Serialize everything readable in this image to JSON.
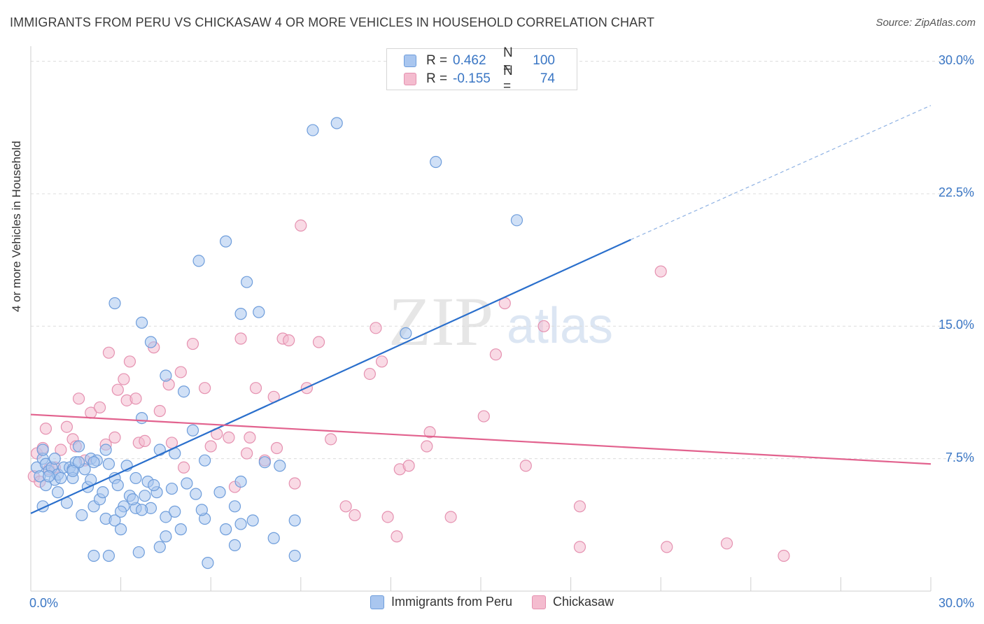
{
  "header": {
    "title": "IMMIGRANTS FROM PERU VS CHICKASAW 4 OR MORE VEHICLES IN HOUSEHOLD CORRELATION CHART",
    "source": "Source: ZipAtlas.com"
  },
  "watermark": {
    "zip": "ZIP",
    "atlas": "atlas"
  },
  "legend_top": {
    "rows": [
      {
        "r_label": "R =",
        "r_value": "0.462",
        "n_label": "N =",
        "n_value": "100"
      },
      {
        "r_label": "R =",
        "r_value": "-0.155",
        "n_label": "N =",
        "n_value": "74"
      }
    ]
  },
  "legend_bottom": [
    {
      "label": "Immigrants from Peru"
    },
    {
      "label": "Chickasaw"
    }
  ],
  "colors": {
    "blue_fill": "#a9c6ef",
    "blue_stroke": "#6e9ddb",
    "blue_line": "#2a6fcc",
    "pink_fill": "#f4bccf",
    "pink_stroke": "#e591b0",
    "pink_line": "#e2628e",
    "axis_text": "#3a76c4",
    "grid": "#dcdcdc"
  },
  "chart_data": {
    "type": "scatter",
    "title": "IMMIGRANTS FROM PERU VS CHICKASAW 4 OR MORE VEHICLES IN HOUSEHOLD CORRELATION CHART",
    "xlabel": "",
    "ylabel": "4 or more Vehicles in Household",
    "xlim": [
      0,
      30
    ],
    "ylim": [
      0,
      30.5
    ],
    "x_tick_labels": [
      "0.0%",
      "30.0%"
    ],
    "y_ticks": [
      7.5,
      15.0,
      22.5,
      30.0
    ],
    "y_tick_labels": [
      "7.5%",
      "15.0%",
      "22.5%",
      "30.0%"
    ],
    "grid": true,
    "legend_position": "bottom",
    "series": [
      {
        "name": "Immigrants from Peru",
        "color": "#a9c6ef",
        "trend": {
          "x": [
            0.0,
            20.0
          ],
          "y": [
            4.4,
            19.9
          ],
          "dashed_extension_to": [
            30.0,
            27.5
          ]
        },
        "points": [
          [
            0.2,
            7.0
          ],
          [
            0.3,
            6.5
          ],
          [
            0.4,
            7.5
          ],
          [
            0.5,
            7.2
          ],
          [
            0.6,
            6.8
          ],
          [
            0.7,
            7.0
          ],
          [
            0.8,
            6.3
          ],
          [
            0.9,
            6.6
          ],
          [
            1.0,
            6.4
          ],
          [
            1.1,
            7.0
          ],
          [
            0.5,
            6.0
          ],
          [
            0.4,
            8.0
          ],
          [
            0.8,
            7.5
          ],
          [
            1.3,
            7.0
          ],
          [
            1.4,
            6.9
          ],
          [
            1.5,
            7.3
          ],
          [
            1.6,
            8.2
          ],
          [
            1.8,
            6.9
          ],
          [
            2.0,
            7.5
          ],
          [
            2.2,
            7.4
          ],
          [
            2.5,
            8.0
          ],
          [
            2.6,
            7.2
          ],
          [
            1.2,
            5.0
          ],
          [
            0.9,
            5.6
          ],
          [
            0.4,
            4.8
          ],
          [
            1.7,
            4.3
          ],
          [
            2.1,
            4.8
          ],
          [
            2.3,
            5.2
          ],
          [
            2.5,
            4.1
          ],
          [
            2.8,
            4.0
          ],
          [
            3.0,
            3.5
          ],
          [
            3.1,
            4.8
          ],
          [
            3.5,
            4.7
          ],
          [
            3.3,
            5.4
          ],
          [
            3.8,
            5.4
          ],
          [
            4.0,
            4.7
          ],
          [
            4.2,
            5.6
          ],
          [
            4.5,
            4.2
          ],
          [
            4.8,
            4.5
          ],
          [
            5.0,
            3.5
          ],
          [
            5.5,
            5.5
          ],
          [
            5.8,
            4.1
          ],
          [
            6.5,
            3.5
          ],
          [
            6.8,
            4.8
          ],
          [
            7.0,
            3.8
          ],
          [
            7.4,
            4.0
          ],
          [
            8.1,
            3.0
          ],
          [
            8.8,
            4.0
          ],
          [
            2.1,
            2.0
          ],
          [
            2.6,
            2.0
          ],
          [
            3.6,
            2.2
          ],
          [
            4.3,
            2.5
          ],
          [
            5.9,
            1.6
          ],
          [
            6.8,
            2.6
          ],
          [
            8.8,
            2.0
          ],
          [
            9.4,
            26.1
          ],
          [
            10.2,
            26.5
          ],
          [
            13.5,
            24.3
          ],
          [
            16.2,
            21.0
          ],
          [
            6.5,
            19.8
          ],
          [
            5.6,
            18.7
          ],
          [
            7.2,
            17.5
          ],
          [
            7.0,
            15.7
          ],
          [
            7.6,
            15.8
          ],
          [
            2.8,
            16.3
          ],
          [
            3.7,
            15.2
          ],
          [
            4.0,
            14.1
          ],
          [
            4.5,
            12.2
          ],
          [
            5.1,
            11.3
          ],
          [
            5.4,
            9.1
          ],
          [
            3.7,
            9.8
          ],
          [
            4.3,
            8.0
          ],
          [
            4.8,
            7.8
          ],
          [
            5.8,
            7.4
          ],
          [
            7.0,
            6.2
          ],
          [
            7.8,
            7.3
          ],
          [
            8.3,
            7.1
          ],
          [
            1.6,
            7.3
          ],
          [
            2.1,
            7.3
          ],
          [
            1.4,
            6.4
          ],
          [
            2.8,
            6.4
          ],
          [
            3.2,
            7.1
          ],
          [
            3.5,
            6.4
          ],
          [
            3.9,
            6.2
          ],
          [
            2.4,
            5.6
          ],
          [
            2.9,
            6.0
          ],
          [
            3.4,
            5.2
          ],
          [
            3.7,
            4.6
          ],
          [
            4.1,
            6.0
          ],
          [
            4.7,
            5.8
          ],
          [
            5.2,
            6.1
          ],
          [
            5.7,
            4.6
          ],
          [
            6.3,
            5.6
          ],
          [
            3.0,
            4.5
          ],
          [
            4.5,
            3.1
          ],
          [
            1.9,
            5.9
          ],
          [
            1.4,
            6.8
          ],
          [
            2.0,
            6.3
          ],
          [
            12.5,
            14.6
          ],
          [
            0.6,
            6.5
          ]
        ]
      },
      {
        "name": "Chickasaw",
        "color": "#f4bccf",
        "trend": {
          "x": [
            0.0,
            30.0
          ],
          "y": [
            10.0,
            7.2
          ]
        },
        "points": [
          [
            0.1,
            6.5
          ],
          [
            0.2,
            7.8
          ],
          [
            0.5,
            9.2
          ],
          [
            0.6,
            6.9
          ],
          [
            1.0,
            8.0
          ],
          [
            1.2,
            9.3
          ],
          [
            1.4,
            8.6
          ],
          [
            1.6,
            10.9
          ],
          [
            1.8,
            7.4
          ],
          [
            2.0,
            10.1
          ],
          [
            2.3,
            10.4
          ],
          [
            2.5,
            8.3
          ],
          [
            2.6,
            13.5
          ],
          [
            2.9,
            11.4
          ],
          [
            3.1,
            12.0
          ],
          [
            3.2,
            10.8
          ],
          [
            3.3,
            13.0
          ],
          [
            3.5,
            10.9
          ],
          [
            3.6,
            8.4
          ],
          [
            3.8,
            8.5
          ],
          [
            4.1,
            13.8
          ],
          [
            4.3,
            10.2
          ],
          [
            4.6,
            11.7
          ],
          [
            4.7,
            8.4
          ],
          [
            5.0,
            12.4
          ],
          [
            5.1,
            7.0
          ],
          [
            5.4,
            14.0
          ],
          [
            5.8,
            11.5
          ],
          [
            6.0,
            8.2
          ],
          [
            6.2,
            8.9
          ],
          [
            6.6,
            8.7
          ],
          [
            6.8,
            5.9
          ],
          [
            7.0,
            14.3
          ],
          [
            7.2,
            7.8
          ],
          [
            7.3,
            8.7
          ],
          [
            7.5,
            11.5
          ],
          [
            7.8,
            7.4
          ],
          [
            8.1,
            11.0
          ],
          [
            8.2,
            8.1
          ],
          [
            8.4,
            14.3
          ],
          [
            8.6,
            14.2
          ],
          [
            8.8,
            6.1
          ],
          [
            9.0,
            20.7
          ],
          [
            9.2,
            11.5
          ],
          [
            9.6,
            14.1
          ],
          [
            10.0,
            8.6
          ],
          [
            10.5,
            4.8
          ],
          [
            10.8,
            4.3
          ],
          [
            11.3,
            12.3
          ],
          [
            11.5,
            14.9
          ],
          [
            11.7,
            13.0
          ],
          [
            11.9,
            4.2
          ],
          [
            12.2,
            3.1
          ],
          [
            12.3,
            6.9
          ],
          [
            12.6,
            7.1
          ],
          [
            13.2,
            8.2
          ],
          [
            13.3,
            9.0
          ],
          [
            14.0,
            4.2
          ],
          [
            15.1,
            9.9
          ],
          [
            15.5,
            13.4
          ],
          [
            15.8,
            16.3
          ],
          [
            16.5,
            7.1
          ],
          [
            17.1,
            15.0
          ],
          [
            18.3,
            2.5
          ],
          [
            18.3,
            4.8
          ],
          [
            21.0,
            18.1
          ],
          [
            21.2,
            2.5
          ],
          [
            23.2,
            2.7
          ],
          [
            25.1,
            2.0
          ],
          [
            0.3,
            6.2
          ],
          [
            0.8,
            7.0
          ],
          [
            1.5,
            8.2
          ],
          [
            2.8,
            8.7
          ],
          [
            0.4,
            8.1
          ]
        ]
      }
    ]
  }
}
